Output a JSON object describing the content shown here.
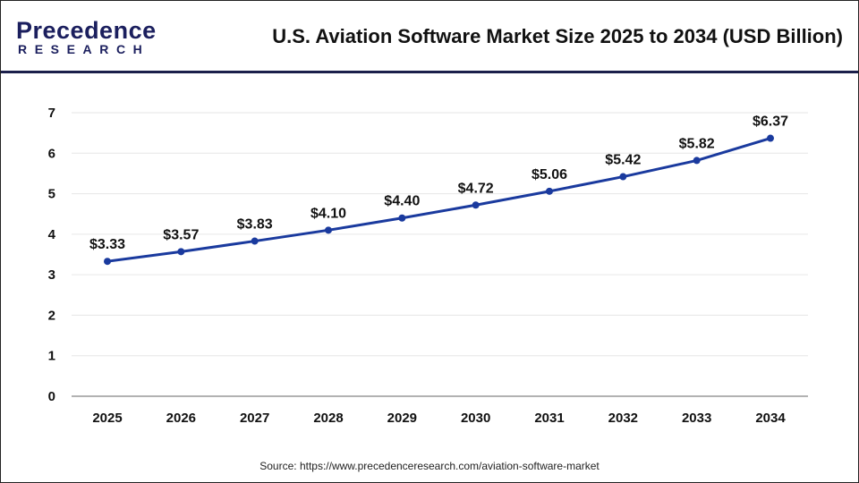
{
  "header": {
    "logo_text_top": "Precedence",
    "logo_text_bottom": "RESEARCH",
    "title": "U.S. Aviation Software Market Size 2025 to 2034 (USD Billion)"
  },
  "source": "Source: https://www.precedenceresearch.com/aviation-software-market",
  "chart_data": {
    "type": "line",
    "title": "U.S. Aviation Software Market Size 2025 to 2034 (USD Billion)",
    "categories": [
      "2025",
      "2026",
      "2027",
      "2028",
      "2029",
      "2030",
      "2031",
      "2032",
      "2033",
      "2034"
    ],
    "values": [
      3.33,
      3.57,
      3.83,
      4.1,
      4.4,
      4.72,
      5.06,
      5.42,
      5.82,
      6.37
    ],
    "data_labels": [
      "$3.33",
      "$3.57",
      "$3.83",
      "$4.10",
      "$4.40",
      "$4.72",
      "$5.06",
      "$5.42",
      "$5.82",
      "$6.37"
    ],
    "yticks": [
      0,
      1,
      2,
      3,
      4,
      5,
      6,
      7
    ],
    "ylim": [
      0,
      7
    ],
    "grid": true,
    "line_color": "#1a3a9e"
  }
}
